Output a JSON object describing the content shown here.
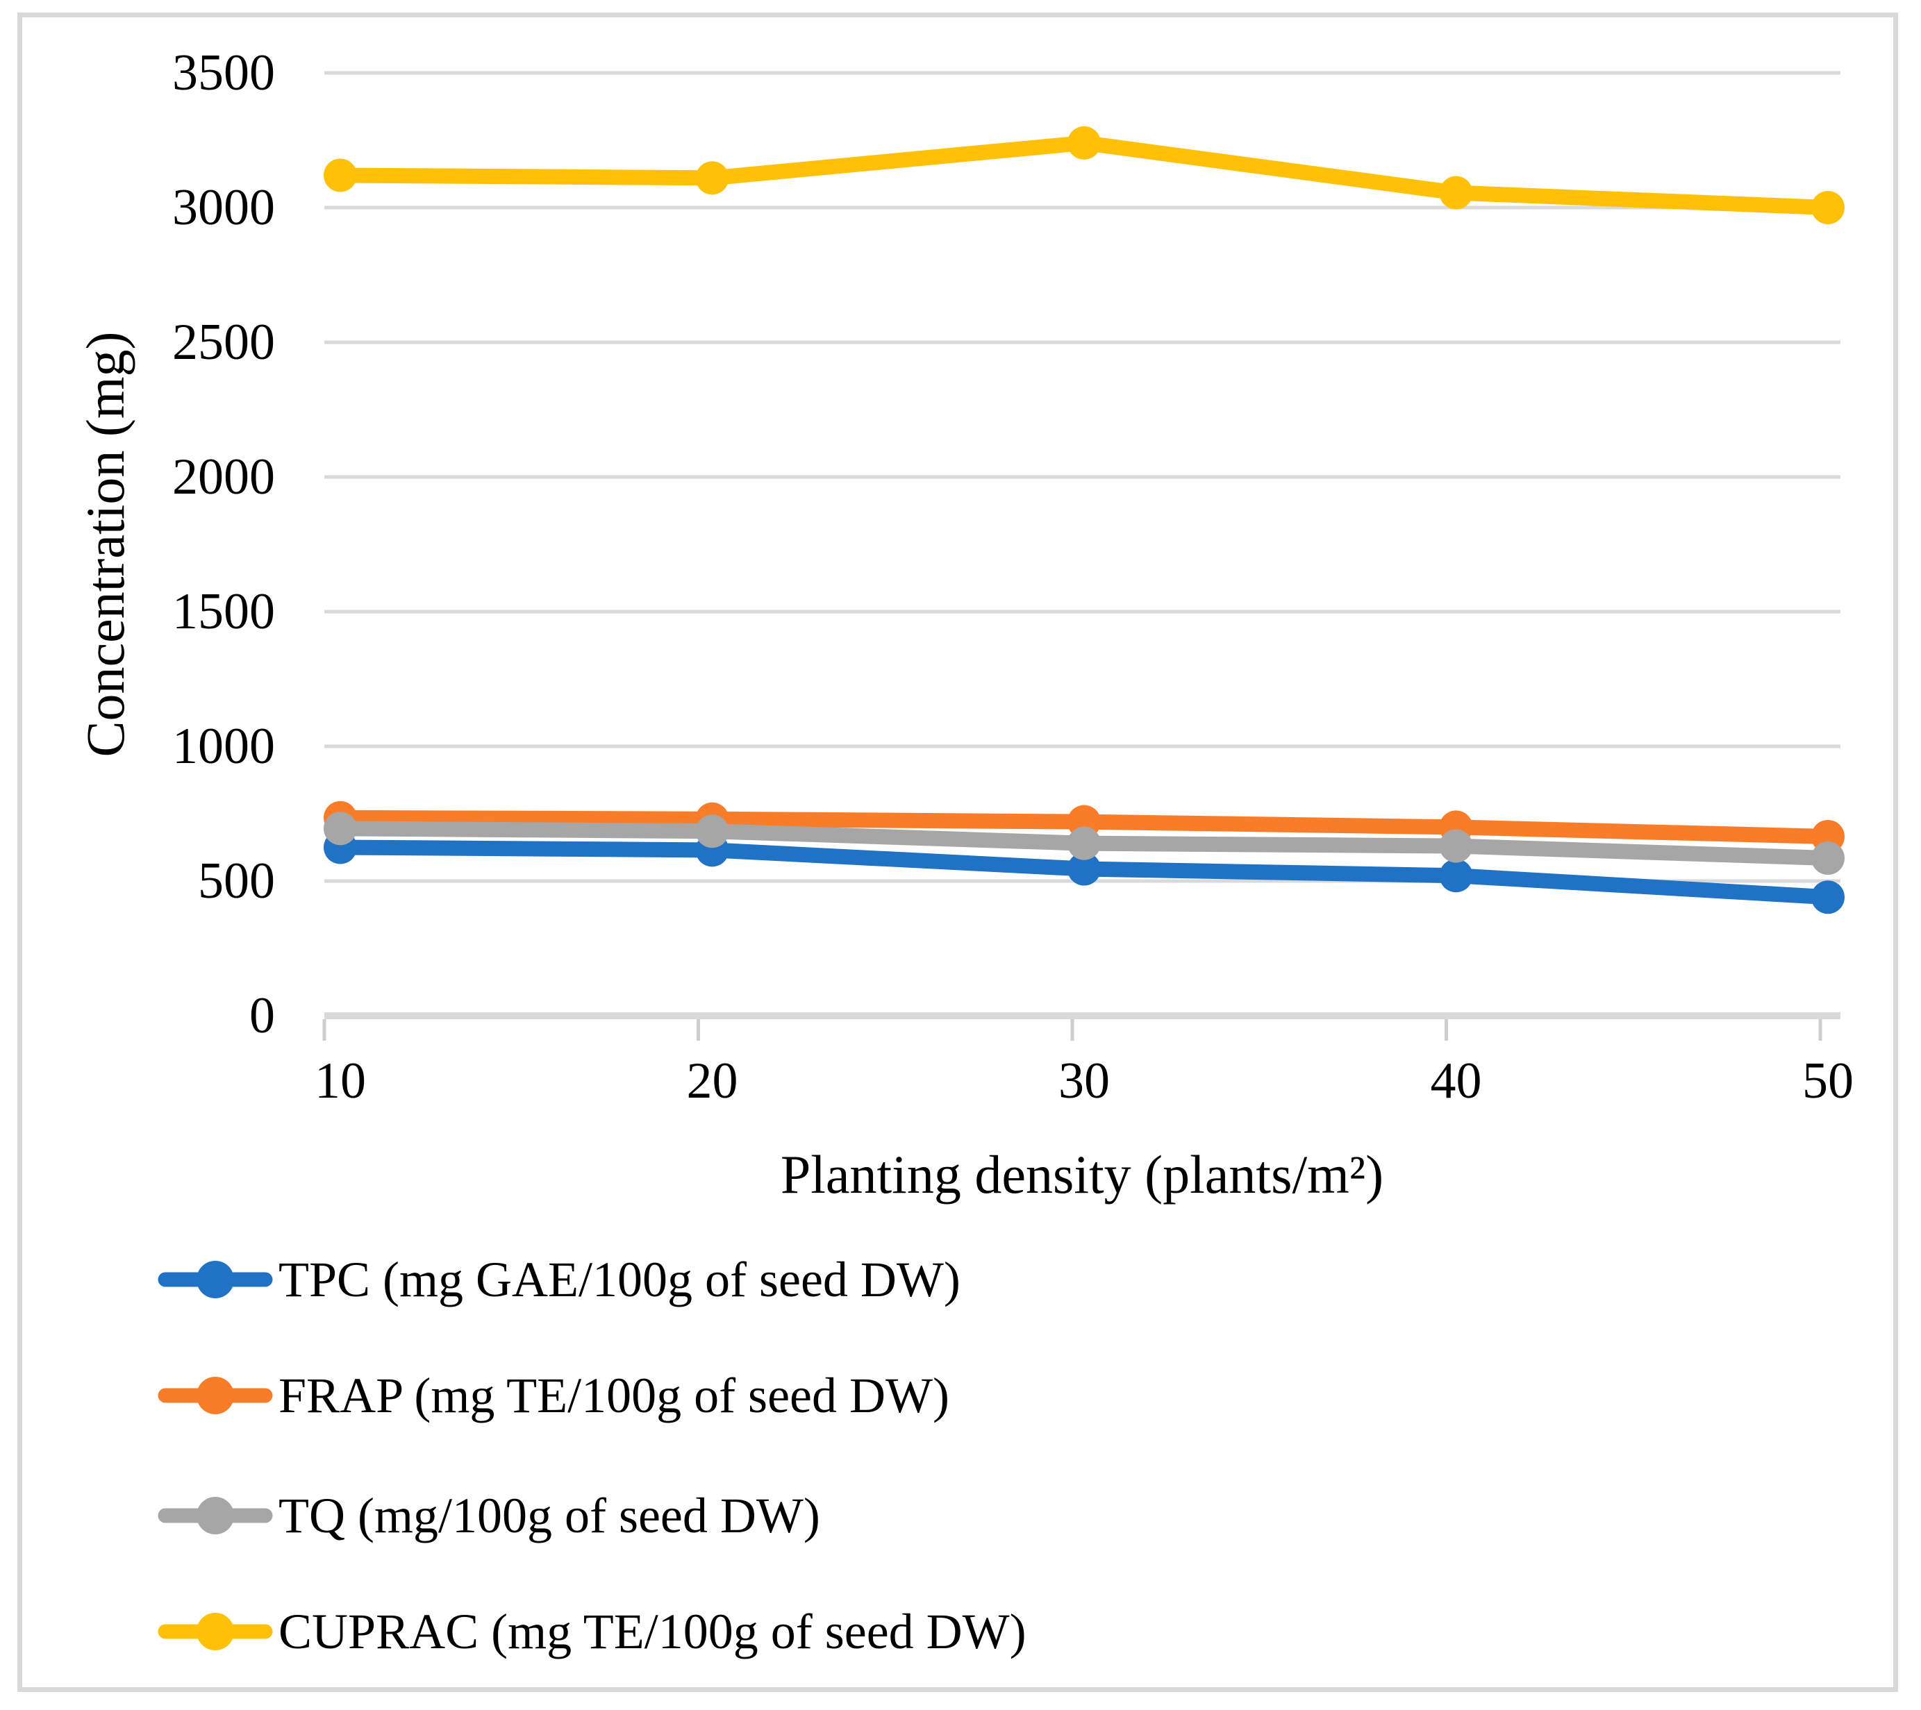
{
  "figure": {
    "background": "#FFFFFF",
    "border_color": "#D9D9D9"
  },
  "chart_data": {
    "type": "line",
    "title": "",
    "xlabel": "Planting density (plants/m²)",
    "ylabel": "Concentration (mg)",
    "categories": [
      "10",
      "20",
      "30",
      "40",
      "50"
    ],
    "yticks": [
      0,
      500,
      1000,
      1500,
      2000,
      2500,
      3000,
      3500
    ],
    "ylim": [
      0,
      3500
    ],
    "xlim_categories": 5,
    "grid": "horizontal",
    "gridline_color": "#D9D9D9",
    "axis_line_color": "#D9D9D9",
    "tick_mark_color": "#CFCFCF",
    "legend_position": "bottom-left-vertical",
    "marker": "circle",
    "series": [
      {
        "name": "TPC (mg GAE/100g of seed DW)",
        "color": "#2072C5",
        "values": [
          625,
          615,
          545,
          520,
          440
        ]
      },
      {
        "name": "FRAP (mg TE/100g of seed DW)",
        "color": "#F97D28",
        "values": [
          735,
          730,
          720,
          700,
          665
        ]
      },
      {
        "name": "TQ (mg/100g of seed DW)",
        "color": "#A6A6A6",
        "values": [
          695,
          685,
          640,
          630,
          585
        ]
      },
      {
        "name": "CUPRAC (mg TE/100g of seed DW)",
        "color": "#FFC107",
        "values": [
          3120,
          3110,
          3240,
          3055,
          3000
        ]
      }
    ]
  }
}
